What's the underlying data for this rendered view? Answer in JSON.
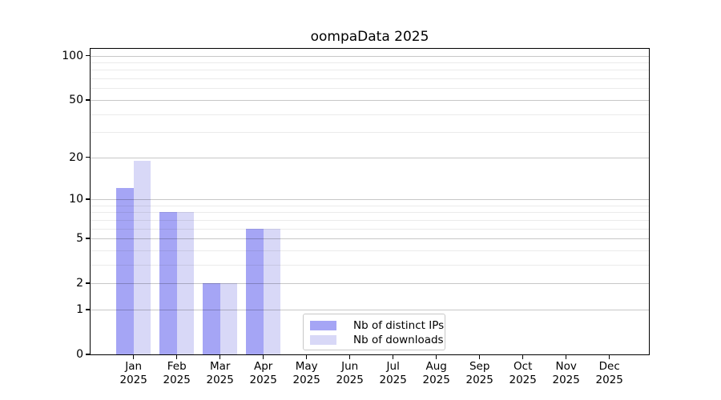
{
  "title": "oompaData 2025",
  "chart_data": {
    "type": "bar",
    "title": "oompaData 2025",
    "categories": [
      "Jan 2025",
      "Feb 2025",
      "Mar 2025",
      "Apr 2025",
      "May 2025",
      "Jun 2025",
      "Jul 2025",
      "Aug 2025",
      "Sep 2025",
      "Oct 2025",
      "Nov 2025",
      "Dec 2025"
    ],
    "series": [
      {
        "name": "Nb of distinct IPs",
        "color": "#a5a5f5",
        "values": [
          12,
          8,
          2,
          6,
          0,
          0,
          0,
          0,
          0,
          0,
          0,
          0
        ]
      },
      {
        "name": "Nb of downloads",
        "color": "#d8d8f7",
        "values": [
          19,
          8,
          2,
          6,
          0,
          0,
          0,
          0,
          0,
          0,
          0,
          0
        ]
      }
    ],
    "xlabel": "",
    "ylabel": "",
    "y_axis": {
      "scale": "log10(1+x)",
      "tick_labels": [
        0,
        1,
        2,
        5,
        10,
        20,
        50,
        100
      ],
      "minor_gridlines": [
        3,
        4,
        6,
        7,
        8,
        9,
        30,
        40,
        60,
        70,
        80,
        90
      ],
      "ylim": [
        0,
        110
      ]
    },
    "grid": "on",
    "legend_position": "bottom-center"
  },
  "colors": {
    "series1": "#a5a5f5",
    "series2": "#d8d8f7",
    "grid_major": "#c8c8c8",
    "grid_minor": "#ebebeb",
    "axis": "#000000"
  }
}
